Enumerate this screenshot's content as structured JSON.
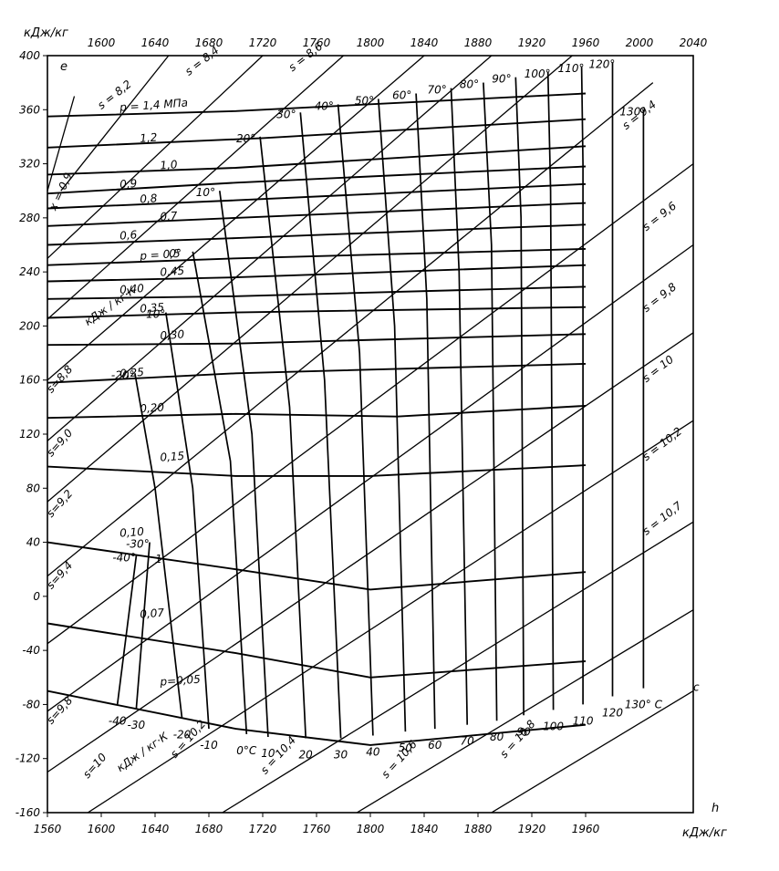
{
  "chart_data": {
    "type": "line",
    "title": "",
    "axis_units": {
      "top_left": "кДж/кг",
      "bottom_right": "кДж/кг"
    },
    "axis_letters": {
      "y": "e",
      "x": "h"
    },
    "y_range": [
      -160,
      400
    ],
    "x_range": [
      1560,
      2040
    ],
    "y_ticks": [
      400,
      360,
      320,
      280,
      240,
      200,
      160,
      120,
      80,
      40,
      0,
      -40,
      -80,
      -120,
      -160
    ],
    "top_ticks": [
      1600,
      1640,
      1680,
      1720,
      1760,
      1800,
      1840,
      1880,
      1920,
      1960,
      2000,
      2040
    ],
    "bottom_ticks": [
      1560,
      1600,
      1640,
      1680,
      1720,
      1760,
      1800,
      1840,
      1880,
      1920,
      1960
    ],
    "grid": true,
    "pressure_labels": [
      "p = 1,4 МПа",
      "1,2",
      "1,0",
      "0,9",
      "0,8",
      "0,7",
      "0,6",
      "p = 0,5",
      "0,45",
      "0,40",
      "0,35",
      "0,30",
      "0,25",
      "0,20",
      "0,15",
      "0,10",
      "0,07",
      "p=0,05"
    ],
    "pressure_lines": [
      {
        "p": "1,4",
        "pts": [
          [
            1560,
            355
          ],
          [
            1700,
            359
          ],
          [
            1760,
            362
          ],
          [
            1960,
            372
          ]
        ]
      },
      {
        "p": "1,2",
        "pts": [
          [
            1560,
            332
          ],
          [
            1720,
            339
          ],
          [
            1960,
            353
          ]
        ]
      },
      {
        "p": "1,0",
        "pts": [
          [
            1560,
            312
          ],
          [
            1700,
            317
          ],
          [
            1960,
            333
          ]
        ]
      },
      {
        "p": "0,9",
        "pts": [
          [
            1560,
            298
          ],
          [
            1700,
            306
          ],
          [
            1960,
            318
          ]
        ]
      },
      {
        "p": "0,8",
        "pts": [
          [
            1560,
            287
          ],
          [
            1700,
            293
          ],
          [
            1960,
            305
          ]
        ]
      },
      {
        "p": "0,7",
        "pts": [
          [
            1560,
            274
          ],
          [
            1700,
            280
          ],
          [
            1960,
            291
          ]
        ]
      },
      {
        "p": "0,6",
        "pts": [
          [
            1560,
            260
          ],
          [
            1700,
            265
          ],
          [
            1960,
            275
          ]
        ]
      },
      {
        "p": "0,5",
        "pts": [
          [
            1560,
            245
          ],
          [
            1700,
            250
          ],
          [
            1960,
            257
          ]
        ]
      },
      {
        "p": "0,45",
        "pts": [
          [
            1560,
            233
          ],
          [
            1700,
            236
          ],
          [
            1960,
            245
          ]
        ]
      },
      {
        "p": "0,40",
        "pts": [
          [
            1560,
            220
          ],
          [
            1700,
            222
          ],
          [
            1960,
            229
          ]
        ]
      },
      {
        "p": "0,35",
        "pts": [
          [
            1560,
            206
          ],
          [
            1700,
            210
          ],
          [
            1960,
            214
          ]
        ]
      },
      {
        "p": "0,30",
        "pts": [
          [
            1560,
            186
          ],
          [
            1700,
            187
          ],
          [
            1960,
            194
          ]
        ]
      },
      {
        "p": "0,25",
        "pts": [
          [
            1560,
            158
          ],
          [
            1700,
            165
          ],
          [
            1960,
            172
          ]
        ]
      },
      {
        "p": "0,20",
        "pts": [
          [
            1560,
            132
          ],
          [
            1700,
            135
          ],
          [
            1820,
            133
          ],
          [
            1960,
            141
          ]
        ]
      },
      {
        "p": "0,15",
        "pts": [
          [
            1560,
            96
          ],
          [
            1700,
            89
          ],
          [
            1800,
            89
          ],
          [
            1960,
            97
          ]
        ]
      },
      {
        "p": "0,10",
        "pts": [
          [
            1560,
            40
          ],
          [
            1700,
            20
          ],
          [
            1800,
            5
          ],
          [
            1960,
            18
          ]
        ]
      },
      {
        "p": "0,07",
        "pts": [
          [
            1560,
            -20
          ],
          [
            1700,
            -42
          ],
          [
            1800,
            -60
          ],
          [
            1960,
            -48
          ]
        ]
      },
      {
        "p": "0,05",
        "pts": [
          [
            1560,
            -70
          ],
          [
            1700,
            -98
          ],
          [
            1800,
            -110
          ],
          [
            1960,
            -95
          ]
        ]
      }
    ],
    "temperature_labels": [
      "-40",
      "-30",
      "-20",
      "-10",
      "0°C",
      "10",
      "20",
      "30",
      "40",
      "50",
      "60",
      "70",
      "80",
      "90",
      "100",
      "110",
      "120",
      "130° C"
    ],
    "temperature_lines": [
      {
        "t": "-40",
        "pts": [
          [
            1612,
            -80
          ],
          [
            1626,
            30
          ]
        ]
      },
      {
        "t": "-30",
        "pts": [
          [
            1626,
            -83
          ],
          [
            1636,
            40
          ]
        ]
      },
      {
        "t": "-20",
        "pts": [
          [
            1660,
            -90
          ],
          [
            1640,
            80
          ],
          [
            1625,
            165
          ]
        ]
      },
      {
        "t": "-10",
        "pts": [
          [
            1680,
            -98
          ],
          [
            1668,
            80
          ],
          [
            1648,
            210
          ]
        ]
      },
      {
        "t": "0",
        "pts": [
          [
            1708,
            -102
          ],
          [
            1696,
            100
          ],
          [
            1668,
            255
          ]
        ]
      },
      {
        "t": "10",
        "pts": [
          [
            1724,
            -104
          ],
          [
            1712,
            120
          ],
          [
            1688,
            300
          ]
        ]
      },
      {
        "t": "20",
        "pts": [
          [
            1752,
            -105
          ],
          [
            1740,
            140
          ],
          [
            1718,
            340
          ]
        ]
      },
      {
        "t": "30",
        "pts": [
          [
            1778,
            -105
          ],
          [
            1766,
            160
          ],
          [
            1748,
            358
          ]
        ]
      },
      {
        "t": "40",
        "pts": [
          [
            1802,
            -103
          ],
          [
            1792,
            180
          ],
          [
            1776,
            364
          ]
        ]
      },
      {
        "t": "50",
        "pts": [
          [
            1826,
            -100
          ],
          [
            1818,
            200
          ],
          [
            1806,
            368
          ]
        ]
      },
      {
        "t": "60",
        "pts": [
          [
            1848,
            -98
          ],
          [
            1842,
            220
          ],
          [
            1834,
            372
          ]
        ]
      },
      {
        "t": "70",
        "pts": [
          [
            1872,
            -95
          ],
          [
            1866,
            240
          ],
          [
            1860,
            376
          ]
        ]
      },
      {
        "t": "80",
        "pts": [
          [
            1894,
            -92
          ],
          [
            1890,
            260
          ],
          [
            1884,
            380
          ]
        ]
      },
      {
        "t": "90",
        "pts": [
          [
            1914,
            -88
          ],
          [
            1912,
            280
          ],
          [
            1908,
            384
          ]
        ]
      },
      {
        "t": "100",
        "pts": [
          [
            1936,
            -84
          ],
          [
            1934,
            300
          ],
          [
            1932,
            388
          ]
        ]
      },
      {
        "t": "110",
        "pts": [
          [
            1958,
            -80
          ],
          [
            1958,
            320
          ],
          [
            1957,
            392
          ]
        ]
      },
      {
        "t": "120",
        "pts": [
          [
            1980,
            -74
          ],
          [
            1980,
            340
          ],
          [
            1980,
            395
          ]
        ]
      },
      {
        "t": "130",
        "pts": [
          [
            2003,
            -68
          ],
          [
            2003,
            360
          ]
        ]
      }
    ],
    "top_temperature_labels": [
      "30°",
      "40°",
      "50°",
      "60°",
      "70°",
      "80°",
      "90°",
      "100°",
      "110°",
      "120°",
      "130°",
      "20°",
      "10°",
      "0°",
      "-10°",
      "-20°",
      "-30°",
      "-40°"
    ],
    "entropy_labels": [
      "s = 8,2",
      "s = 8,4",
      "s = 8,6",
      "s = 9,4",
      "s = 9,6",
      "s = 9,8",
      "s = 10",
      "s = 10,2",
      "s = 10,7",
      "s=8,8",
      "s=9,0",
      "s=9,2",
      "s=9,4",
      "s=9,8",
      "s=10",
      "s = 10,2",
      "s = 10,4",
      "s = 10,6",
      "s = 10,8"
    ],
    "entropy_lines": [
      {
        "s": "8,2",
        "pts": [
          [
            1570,
            300
          ],
          [
            1650,
            400
          ]
        ]
      },
      {
        "s": "8,4",
        "pts": [
          [
            1560,
            250
          ],
          [
            1720,
            400
          ]
        ]
      },
      {
        "s": "8,6",
        "pts": [
          [
            1560,
            205
          ],
          [
            1780,
            400
          ]
        ]
      },
      {
        "s": "8,8",
        "pts": [
          [
            1560,
            160
          ],
          [
            1840,
            400
          ]
        ]
      },
      {
        "s": "9,0",
        "pts": [
          [
            1560,
            115
          ],
          [
            1890,
            400
          ]
        ]
      },
      {
        "s": "9,2",
        "pts": [
          [
            1560,
            70
          ],
          [
            1950,
            400
          ]
        ]
      },
      {
        "s": "9,4",
        "pts": [
          [
            1560,
            15
          ],
          [
            2010,
            380
          ]
        ]
      },
      {
        "s": "9,6",
        "pts": [
          [
            1560,
            -35
          ],
          [
            2040,
            320
          ]
        ]
      },
      {
        "s": "9,8",
        "pts": [
          [
            1560,
            -85
          ],
          [
            2040,
            260
          ]
        ]
      },
      {
        "s": "10",
        "pts": [
          [
            1560,
            -130
          ],
          [
            2040,
            195
          ]
        ]
      },
      {
        "s": "10,2",
        "pts": [
          [
            1590,
            -160
          ],
          [
            2040,
            130
          ]
        ]
      },
      {
        "s": "10,4",
        "pts": [
          [
            1690,
            -160
          ],
          [
            2040,
            55
          ]
        ]
      },
      {
        "s": "10,6",
        "pts": [
          [
            1790,
            -160
          ],
          [
            2040,
            -10
          ]
        ]
      },
      {
        "s": "10,8",
        "pts": [
          [
            1890,
            -160
          ],
          [
            2040,
            -70
          ]
        ]
      }
    ],
    "saturation_line": {
      "label": "x = 0,9",
      "pts": [
        [
          1560,
          300
        ],
        [
          1580,
          370
        ]
      ]
    },
    "annotations": [
      "кДж / кг·К",
      "кДж / кг·К",
      "x = 0,9",
      "e",
      "h",
      "c",
      "1"
    ]
  }
}
